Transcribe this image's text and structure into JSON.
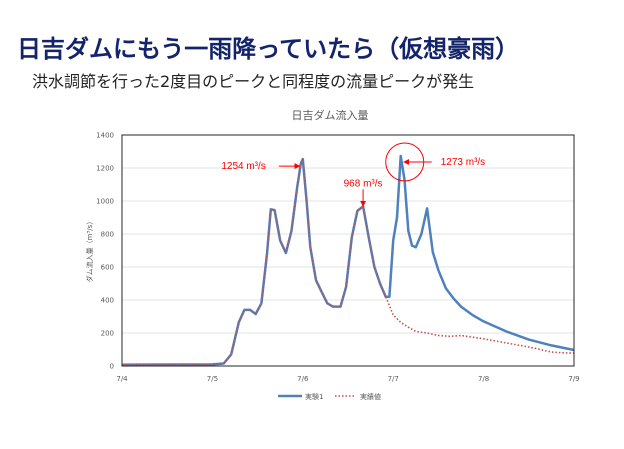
{
  "slide": {
    "title": "日吉ダムにもう一雨降っていたら（仮想豪雨）",
    "subtitle": "洪水調節を行った2度目のピークと同程度の流量ピークが発生"
  },
  "colors": {
    "title": "#14246b",
    "series_experiment": "#4f81bd",
    "series_actual": "#c0504d",
    "annotation": "#ff0000"
  },
  "chart_data": {
    "type": "line",
    "title": "日吉ダム流入量",
    "xlabel": "",
    "ylabel": "ダム流入量（m³/s）",
    "x_unit": "hours since 7/4 0:00",
    "xlim": [
      0,
      120
    ],
    "ylim": [
      0,
      1400
    ],
    "yticks": [
      0,
      200,
      400,
      600,
      800,
      1000,
      1200,
      1400
    ],
    "xtick_labels": [
      "7/4",
      "7/5",
      "7/6",
      "7/7",
      "7/8",
      "7/9"
    ],
    "xtick_values": [
      0,
      24,
      48,
      72,
      96,
      120
    ],
    "grid": true,
    "legend_position": "bottom",
    "series": [
      {
        "name": "実験1",
        "style": "solid",
        "x": [
          0,
          12,
          24,
          27,
          29,
          31,
          32.5,
          34,
          35.5,
          37,
          38.5,
          39.5,
          40.5,
          42,
          43.5,
          45,
          46.5,
          47.5,
          48,
          49,
          50,
          51.5,
          53,
          54.5,
          56,
          58,
          59.5,
          61,
          62.5,
          64,
          65.5,
          67,
          68.5,
          70,
          71,
          72,
          73,
          74,
          75,
          76,
          77,
          78,
          79.5,
          81,
          82.5,
          84,
          86,
          88,
          90,
          93,
          96,
          102,
          108,
          114,
          120
        ],
        "y": [
          8,
          9,
          10,
          15,
          70,
          265,
          340,
          340,
          315,
          380,
          680,
          950,
          945,
          760,
          685,
          820,
          1080,
          1230,
          1254,
          1000,
          720,
          520,
          450,
          380,
          360,
          360,
          480,
          780,
          940,
          968,
          780,
          600,
          500,
          420,
          420,
          760,
          900,
          1273,
          1130,
          820,
          730,
          720,
          800,
          955,
          690,
          580,
          470,
          410,
          360,
          310,
          270,
          210,
          160,
          125,
          97
        ]
      },
      {
        "name": "実績値",
        "style": "dotted",
        "x": [
          0,
          12,
          24,
          27,
          29,
          31,
          32.5,
          34,
          35.5,
          37,
          38.5,
          39.5,
          40.5,
          42,
          43.5,
          45,
          46.5,
          47.5,
          48,
          49,
          50,
          51.5,
          53,
          54.5,
          56,
          58,
          59.5,
          61,
          62.5,
          64,
          65.5,
          67,
          68.5,
          70,
          72,
          74,
          76,
          78,
          81,
          84,
          87,
          90,
          93,
          96,
          102,
          108,
          114,
          117,
          120
        ],
        "y": [
          8,
          9,
          10,
          15,
          70,
          265,
          340,
          340,
          315,
          380,
          680,
          950,
          945,
          760,
          685,
          820,
          1080,
          1230,
          1254,
          1000,
          720,
          520,
          450,
          380,
          360,
          360,
          480,
          780,
          940,
          968,
          780,
          600,
          500,
          420,
          310,
          265,
          235,
          210,
          200,
          185,
          180,
          185,
          175,
          165,
          140,
          115,
          85,
          80,
          78
        ]
      }
    ],
    "annotations": [
      {
        "text": "1254 m³/s",
        "x": 48,
        "y": 1254,
        "arrow": "from-left"
      },
      {
        "text": "968 m³/s",
        "x": 64,
        "y": 968,
        "arrow": "from-top"
      },
      {
        "text": "1273 m³/s",
        "x": 74,
        "y": 1273,
        "arrow": "from-right",
        "circled": true
      }
    ]
  }
}
